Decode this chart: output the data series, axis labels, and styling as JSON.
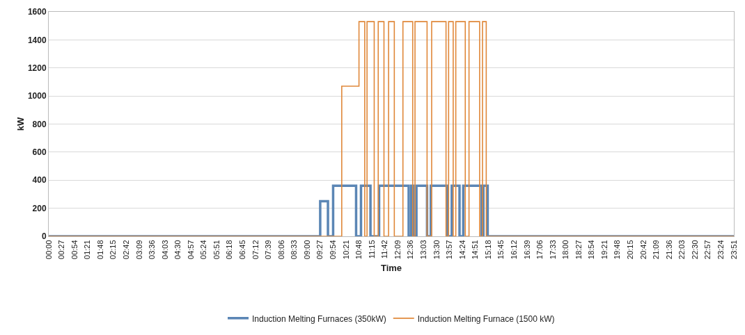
{
  "chart_data": {
    "type": "step",
    "xlabel": "Time",
    "ylabel": "kW",
    "xlim": [
      0,
      23.85
    ],
    "ylim": [
      0,
      1600
    ],
    "yticks": [
      0,
      200,
      400,
      600,
      800,
      1000,
      1200,
      1400,
      1600
    ],
    "xticks": [
      {
        "value": 0,
        "label": "00:00"
      },
      {
        "value": 0.45,
        "label": "00:27"
      },
      {
        "value": 0.9,
        "label": "00:54"
      },
      {
        "value": 1.35,
        "label": "01:21"
      },
      {
        "value": 1.8,
        "label": "01:48"
      },
      {
        "value": 2.25,
        "label": "02:15"
      },
      {
        "value": 2.7,
        "label": "02:42"
      },
      {
        "value": 3.15,
        "label": "03:09"
      },
      {
        "value": 3.6,
        "label": "03:36"
      },
      {
        "value": 4.05,
        "label": "04:03"
      },
      {
        "value": 4.5,
        "label": "04:30"
      },
      {
        "value": 4.95,
        "label": "04:57"
      },
      {
        "value": 5.4,
        "label": "05:24"
      },
      {
        "value": 5.85,
        "label": "05:51"
      },
      {
        "value": 6.3,
        "label": "06:18"
      },
      {
        "value": 6.75,
        "label": "06:45"
      },
      {
        "value": 7.2,
        "label": "07:12"
      },
      {
        "value": 7.65,
        "label": "07:39"
      },
      {
        "value": 8.1,
        "label": "08:06"
      },
      {
        "value": 8.55,
        "label": "08:33"
      },
      {
        "value": 9,
        "label": "09:00"
      },
      {
        "value": 9.45,
        "label": "09:27"
      },
      {
        "value": 9.9,
        "label": "09:54"
      },
      {
        "value": 10.35,
        "label": "10:21"
      },
      {
        "value": 10.8,
        "label": "10:48"
      },
      {
        "value": 11.25,
        "label": "11:15"
      },
      {
        "value": 11.7,
        "label": "11:42"
      },
      {
        "value": 12.15,
        "label": "12:09"
      },
      {
        "value": 12.6,
        "label": "12:36"
      },
      {
        "value": 13.05,
        "label": "13:03"
      },
      {
        "value": 13.5,
        "label": "13:30"
      },
      {
        "value": 13.95,
        "label": "13:57"
      },
      {
        "value": 14.4,
        "label": "14:24"
      },
      {
        "value": 14.85,
        "label": "14:51"
      },
      {
        "value": 15.3,
        "label": "15:18"
      },
      {
        "value": 15.75,
        "label": "15:45"
      },
      {
        "value": 16.2,
        "label": "16:12"
      },
      {
        "value": 16.65,
        "label": "16:39"
      },
      {
        "value": 17.1,
        "label": "17:06"
      },
      {
        "value": 17.55,
        "label": "17:33"
      },
      {
        "value": 18,
        "label": "18:00"
      },
      {
        "value": 18.45,
        "label": "18:27"
      },
      {
        "value": 18.9,
        "label": "18:54"
      },
      {
        "value": 19.35,
        "label": "19:21"
      },
      {
        "value": 19.8,
        "label": "19:48"
      },
      {
        "value": 20.25,
        "label": "20:15"
      },
      {
        "value": 20.7,
        "label": "20:42"
      },
      {
        "value": 21.15,
        "label": "21:09"
      },
      {
        "value": 21.6,
        "label": "21:36"
      },
      {
        "value": 22.05,
        "label": "22:03"
      },
      {
        "value": 22.5,
        "label": "22:30"
      },
      {
        "value": 22.95,
        "label": "22:57"
      },
      {
        "value": 23.4,
        "label": "23:24"
      },
      {
        "value": 23.85,
        "label": "23:51"
      }
    ],
    "grid": "y",
    "legend": "bottom",
    "marker": "none",
    "line_style": "solid",
    "series": [
      {
        "name": "Induction Melting Furnaces (350kW)",
        "color": "#5b86b5",
        "x": [
          0,
          9.45,
          9.72,
          9.9,
          10.7,
          10.87,
          11.2,
          11.5,
          12.53,
          12.62,
          12.7,
          12.8,
          13.17,
          13.3,
          13.87,
          14.03,
          14.3,
          14.43,
          15.07,
          15.13,
          15.28,
          23.85
        ],
        "values": [
          0,
          250,
          0,
          360,
          0,
          360,
          0,
          360,
          0,
          360,
          0,
          360,
          0,
          360,
          0,
          360,
          0,
          360,
          0,
          360,
          0,
          0
        ]
      },
      {
        "name": "Induction Melting Furnace (1500 kW)",
        "color": "#e0883a",
        "x": [
          0,
          10.2,
          10.8,
          11,
          11.08,
          11.33,
          11.47,
          11.67,
          11.83,
          12.03,
          12.33,
          12.67,
          12.75,
          13.17,
          13.33,
          13.83,
          13.92,
          14.08,
          14.17,
          14.5,
          14.63,
          15,
          15.1,
          15.23,
          23.85
        ],
        "values": [
          0,
          1070,
          1530,
          0,
          1530,
          0,
          1530,
          0,
          1530,
          0,
          1530,
          0,
          1530,
          0,
          1530,
          0,
          1530,
          0,
          1530,
          0,
          1530,
          0,
          1530,
          0,
          0
        ]
      }
    ]
  }
}
